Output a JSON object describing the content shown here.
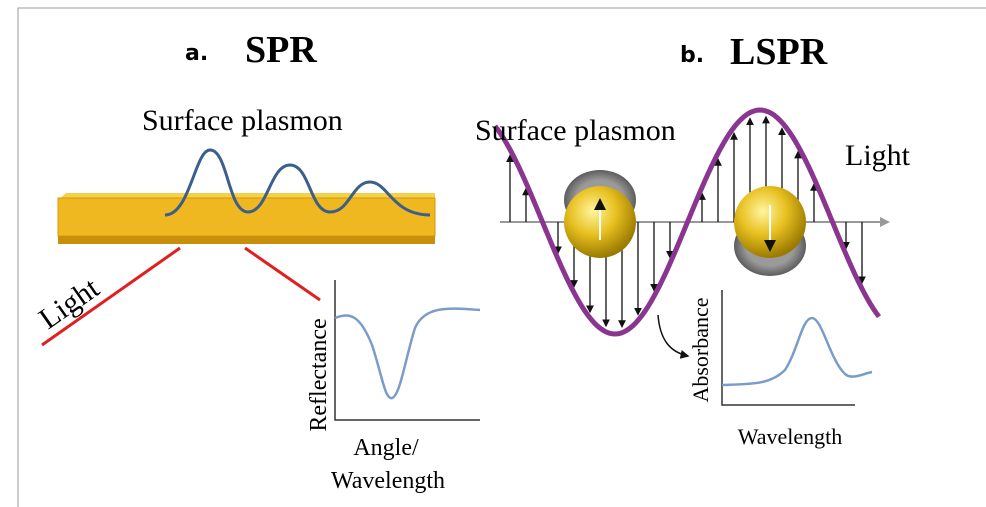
{
  "panels": [
    {
      "label": "a.",
      "title": "SPR",
      "wave_label": "Surface plasmon",
      "light_label": "Light",
      "plot": {
        "y_label": "Reflectance",
        "x_label": [
          "Angle/",
          "Wavelength"
        ]
      }
    },
    {
      "label": "b.",
      "title": "LSPR",
      "wave_label": "Surface plasmon",
      "light_label": "Light",
      "plot": {
        "y_label": "Absorbance",
        "x_label": "Wavelength"
      }
    }
  ]
}
